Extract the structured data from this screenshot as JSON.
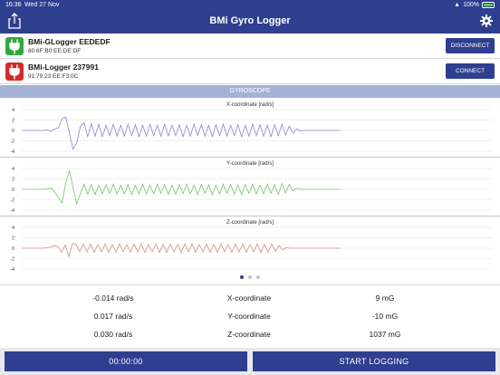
{
  "status": {
    "time": "16:36",
    "date": "Wed 27 Nov",
    "battery": "100%"
  },
  "header": {
    "title": "BMi Gyro Logger",
    "share_icon": "share-icon",
    "settings_icon": "gear-icon"
  },
  "devices": [
    {
      "name": "BMi-GLogger EEDEDF",
      "mac": "80:6F:B0:EE:DE:DF",
      "button": "DISCONNECT",
      "status_color": "#33a83e"
    },
    {
      "name": "BMi-Logger 237991",
      "mac": "91:79:23:EE:F3:0C",
      "button": "CONNECT",
      "status_color": "#d42b2b"
    }
  ],
  "section": {
    "title": "GYROSCOPE"
  },
  "chart_data": [
    {
      "type": "line",
      "title": "X-coordinate [rad/s]",
      "ylim": [
        -4,
        4
      ],
      "yticks": [
        "4",
        "2",
        "0",
        "-2",
        "-4"
      ],
      "color": "#8a86d6",
      "series": [
        {
          "values": [
            0,
            0,
            0,
            0,
            0,
            0,
            0,
            0.1,
            -0.2,
            0.3,
            0.5,
            2.2,
            2.6,
            -0.5,
            -3.6,
            -2.4,
            0.8,
            1.5,
            -1.2,
            1.3,
            -1.1,
            1.2,
            -1.2,
            1.0,
            -1.0,
            1.2,
            -1.1,
            1.0,
            -1.1,
            1.2,
            -1.0,
            1.1,
            -1.2,
            1.0,
            -1.1,
            1.2,
            -1.0,
            1.0,
            -1.1,
            1.2,
            -1.1,
            1.0,
            -1.0,
            1.1,
            -1.2,
            1.0,
            -1.1,
            1.2,
            -1.0,
            1.1,
            -1.1,
            1.0,
            -1.2,
            1.1,
            -1.0,
            1.2,
            -1.1,
            1.0,
            -1.0,
            1.1,
            -1.2,
            1.0,
            -1.1,
            1.2,
            -1.0,
            1.1,
            -1.1,
            1.0,
            -1.2,
            1.1,
            -1.0,
            1.2,
            -0.9,
            0.8,
            -0.6,
            0.3,
            -0.1,
            0,
            0,
            0,
            0,
            0,
            0,
            0,
            0,
            0,
            0,
            0
          ]
        }
      ]
    },
    {
      "type": "line",
      "title": "Y-coordinate [rad/s]",
      "ylim": [
        -4,
        4
      ],
      "yticks": [
        "4",
        "2",
        "0",
        "-2",
        "-4"
      ],
      "color": "#74c46b",
      "series": [
        {
          "values": [
            0,
            0,
            0,
            0,
            0,
            0,
            0,
            0.1,
            0.2,
            -0.5,
            -1.6,
            -2.6,
            1.2,
            3.6,
            0.4,
            -2.8,
            -0.8,
            1.0,
            -0.9,
            0.9,
            -1.0,
            0.8,
            -0.9,
            0.9,
            -0.8,
            1.0,
            -0.9,
            0.8,
            -0.9,
            0.9,
            -1.0,
            0.8,
            -0.9,
            1.0,
            -0.9,
            0.8,
            -0.9,
            1.0,
            -0.8,
            0.9,
            -1.0,
            0.8,
            -0.9,
            0.9,
            -0.8,
            1.0,
            -0.9,
            0.8,
            -1.0,
            0.9,
            -0.8,
            0.9,
            -1.0,
            0.8,
            -0.9,
            1.0,
            -0.8,
            0.9,
            -0.9,
            0.8,
            -1.0,
            0.9,
            -0.8,
            1.0,
            -0.9,
            0.8,
            -0.9,
            1.0,
            -0.8,
            0.9,
            -1.0,
            1.1,
            -0.7,
            1.0,
            -0.3,
            0.2,
            0,
            0,
            0,
            0,
            0,
            0,
            0,
            0,
            0,
            0,
            0,
            0
          ]
        }
      ]
    },
    {
      "type": "line",
      "title": "Z-coordinate [rad/s]",
      "ylim": [
        -4,
        4
      ],
      "yticks": [
        "4",
        "2",
        "0",
        "-2",
        "-4"
      ],
      "color": "#d48a8a",
      "series": [
        {
          "values": [
            0,
            0,
            0,
            0,
            0,
            0,
            0,
            0.1,
            0.2,
            0.5,
            0.3,
            -0.8,
            0.6,
            -1.6,
            0.9,
            0.7,
            -0.6,
            0.8,
            -0.7,
            0.8,
            -0.8,
            0.7,
            -0.7,
            0.8,
            -0.8,
            0.7,
            -0.8,
            0.8,
            -0.7,
            0.7,
            -0.8,
            0.8,
            -0.7,
            0.8,
            -0.8,
            0.7,
            -0.7,
            0.8,
            -0.8,
            0.7,
            -0.8,
            0.8,
            -0.7,
            0.7,
            -0.8,
            0.8,
            -0.7,
            0.8,
            -0.8,
            0.7,
            -0.7,
            0.8,
            -0.8,
            0.7,
            -0.8,
            0.8,
            -0.7,
            0.7,
            -0.8,
            0.8,
            -0.7,
            0.8,
            -0.8,
            0.7,
            -0.7,
            0.8,
            -0.8,
            0.7,
            -0.8,
            0.8,
            -0.6,
            0.5,
            -0.3,
            0.1,
            0,
            0,
            0,
            0,
            0,
            0,
            0,
            0,
            0,
            0,
            0,
            0,
            0,
            0,
            0
          ]
        }
      ]
    }
  ],
  "pager": {
    "count": 3,
    "active": 0
  },
  "readings": [
    {
      "value": "-0.014 rad/s",
      "axis": "X-coordinate",
      "mg": "9 mG"
    },
    {
      "value": "0.017 rad/s",
      "axis": "Y-coordinate",
      "mg": "-10 mG"
    },
    {
      "value": "0.030 rad/s",
      "axis": "Z-coordinate",
      "mg": "1037 mG"
    }
  ],
  "buttons": {
    "timer": "00:00:00",
    "start": "START LOGGING"
  }
}
